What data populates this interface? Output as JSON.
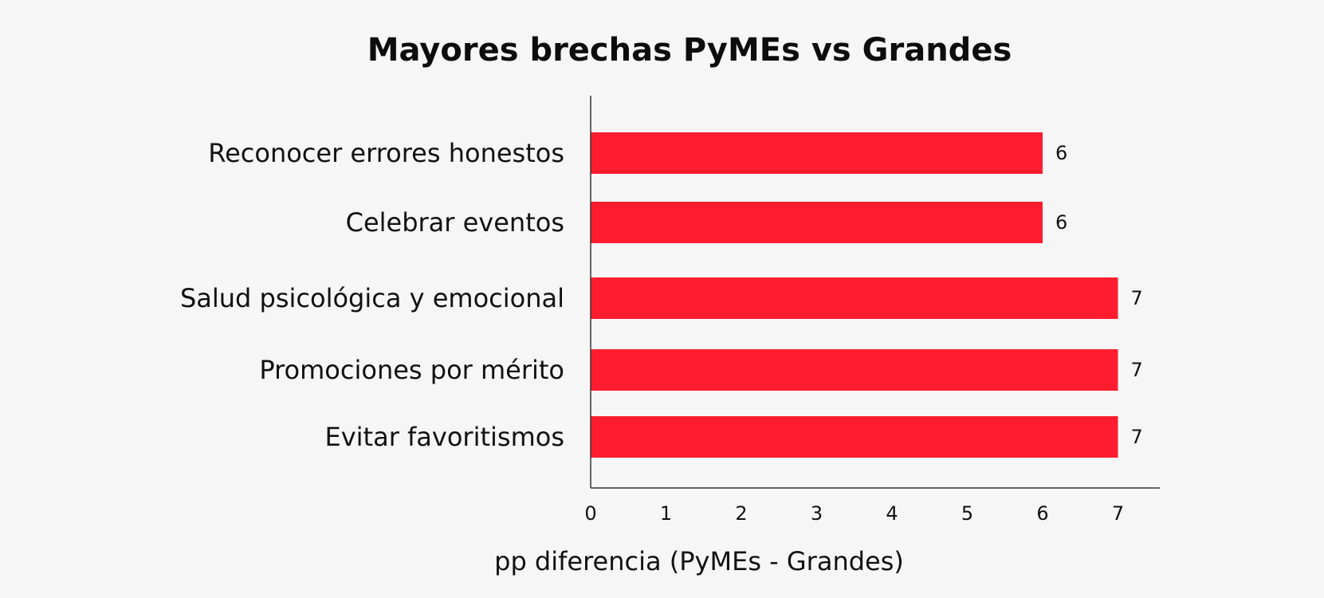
{
  "chart_data": {
    "type": "bar",
    "orientation": "horizontal",
    "title": "Mayores brechas PyMEs vs Grandes",
    "xlabel": "pp diferencia (PyMEs - Grandes)",
    "ylabel": "",
    "categories": [
      "Reconocer errores honestos",
      "Celebrar eventos",
      "Salud psicológica y emocional",
      "Promociones por mérito",
      "Evitar favoritismos"
    ],
    "values": [
      6,
      6,
      7,
      7,
      7
    ],
    "value_labels": [
      "6",
      "6",
      "7",
      "7",
      "7"
    ],
    "xlim": [
      0,
      7.5
    ],
    "x_ticks": [
      0,
      1,
      2,
      3,
      4,
      5,
      6,
      7
    ],
    "x_tick_labels": [
      "0",
      "1",
      "2",
      "3",
      "4",
      "5",
      "6",
      "7"
    ],
    "grid": false,
    "bar_color": "#ff1c2e",
    "background_color": "#f5f6f5"
  }
}
